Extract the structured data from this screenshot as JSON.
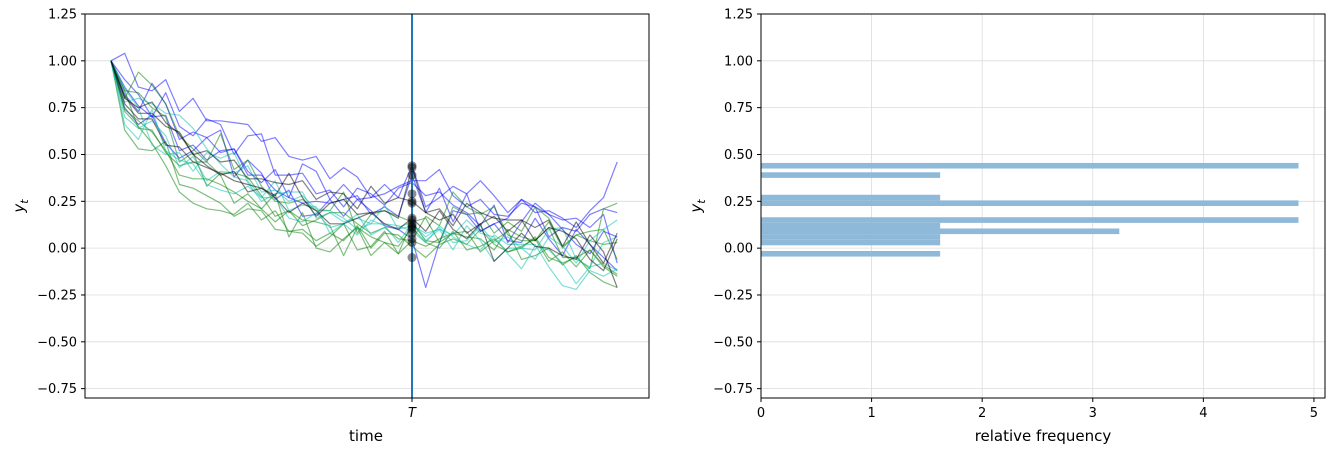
{
  "chart_data": [
    {
      "type": "line",
      "xlabel": "time",
      "ylabel": "y_t",
      "xtick_labels": [
        "T"
      ],
      "ylim": [
        -0.8,
        1.25
      ],
      "yticks": [
        -0.75,
        -0.5,
        -0.25,
        0.0,
        0.25,
        0.5,
        0.75,
        1.0,
        1.25
      ],
      "ytick_labels": [
        "−0.75",
        "−0.50",
        "−0.25",
        "0.00",
        "0.25",
        "0.50",
        "0.75",
        "1.00",
        "1.25"
      ],
      "n_steps": 38,
      "T_index": 22,
      "vline_color": "#1f77b4",
      "series_colors": [
        "#0000ff",
        "#008000",
        "#00c0b0",
        "#000000"
      ],
      "series": [
        {
          "color": "#0000ff",
          "values": [
            1.0,
            1.04,
            0.86,
            0.84,
            0.9,
            0.73,
            0.8,
            0.68,
            0.68,
            0.67,
            0.66,
            0.57,
            0.59,
            0.49,
            0.47,
            0.49,
            0.37,
            0.43,
            0.38,
            0.27,
            0.34,
            0.27,
            0.44,
            0.22,
            0.27,
            0.33,
            0.29,
            0.36,
            0.28,
            0.19,
            0.26,
            0.19,
            0.2,
            0.16,
            0.11,
            0.2,
            0.27,
            0.46
          ]
        },
        {
          "color": "#0000ff",
          "values": [
            1.0,
            0.86,
            0.76,
            0.7,
            0.83,
            0.65,
            0.6,
            0.69,
            0.66,
            0.5,
            0.6,
            0.61,
            0.39,
            0.39,
            0.4,
            0.29,
            0.31,
            0.22,
            0.32,
            0.29,
            0.23,
            0.32,
            0.35,
            0.28,
            0.3,
            0.23,
            0.19,
            0.12,
            0.23,
            0.03,
            0.14,
            0.24,
            0.18,
            0.1,
            0.02,
            -0.03,
            0.09,
            0.06
          ]
        },
        {
          "color": "#0000ff",
          "values": [
            1.0,
            0.82,
            0.73,
            0.88,
            0.77,
            0.58,
            0.62,
            0.59,
            0.63,
            0.38,
            0.47,
            0.4,
            0.26,
            0.31,
            0.17,
            0.18,
            0.26,
            0.17,
            0.26,
            0.2,
            0.12,
            0.1,
            0.05,
            -0.21,
            0.03,
            0.2,
            0.18,
            0.09,
            0.13,
            0.04,
            0.03,
            0.16,
            0.05,
            -0.04,
            0.1,
            0.02,
            -0.05,
            -0.12
          ]
        },
        {
          "color": "#0000ff",
          "values": [
            1.0,
            0.9,
            0.82,
            0.7,
            0.71,
            0.52,
            0.55,
            0.47,
            0.52,
            0.53,
            0.39,
            0.39,
            0.31,
            0.27,
            0.24,
            0.25,
            0.24,
            0.26,
            0.28,
            0.18,
            0.22,
            0.17,
            0.39,
            0.19,
            0.32,
            0.14,
            0.29,
            0.09,
            0.13,
            0.16,
            0.26,
            0.22,
            0.06,
            0.11,
            0.09,
            0.18,
            0.21,
            0.19
          ]
        },
        {
          "color": "#0000ff",
          "values": [
            1.0,
            0.75,
            0.66,
            0.71,
            0.56,
            0.48,
            0.52,
            0.59,
            0.51,
            0.53,
            0.41,
            0.35,
            0.42,
            0.27,
            0.45,
            0.41,
            0.26,
            0.34,
            0.26,
            0.27,
            0.29,
            0.33,
            0.36,
            0.36,
            0.42,
            0.28,
            0.22,
            0.26,
            0.18,
            0.17,
            0.24,
            0.22,
            0.18,
            0.15,
            0.16,
            0.11,
            0.18,
            -0.08
          ]
        },
        {
          "color": "#008000",
          "values": [
            1.0,
            0.8,
            0.94,
            0.87,
            0.77,
            0.6,
            0.53,
            0.46,
            0.61,
            0.42,
            0.47,
            0.33,
            0.25,
            0.24,
            0.26,
            0.2,
            0.2,
            0.3,
            0.08,
            0.18,
            0.2,
            0.17,
            0.14,
            0.16,
            0.03,
            0.22,
            0.18,
            0.19,
            0.08,
            0.14,
            0.09,
            0.22,
            0.16,
            0.01,
            0.07,
            0.09,
            0.1,
            -0.06
          ]
        },
        {
          "color": "#008000",
          "values": [
            1.0,
            0.84,
            0.64,
            0.63,
            0.51,
            0.44,
            0.46,
            0.46,
            0.39,
            0.24,
            0.29,
            0.21,
            0.14,
            0.2,
            0.12,
            0.15,
            0.19,
            0.19,
            0.13,
            0.08,
            0.11,
            0.05,
            0.04,
            0.17,
            0.12,
            0.3,
            0.22,
            0.18,
            0.22,
            0.07,
            0.04,
            0.04,
            0.11,
            -0.05,
            -0.05,
            -0.11,
            0.21,
            0.24
          ]
        },
        {
          "color": "#008000",
          "values": [
            1.0,
            0.84,
            0.83,
            0.75,
            0.7,
            0.46,
            0.51,
            0.33,
            0.4,
            0.4,
            0.38,
            0.28,
            0.17,
            0.2,
            0.15,
            0.14,
            0.12,
            -0.04,
            0.11,
            -0.04,
            0.03,
            -0.03,
            0.04,
            0.01,
            0.05,
            0.08,
            0.09,
            -0.02,
            0.04,
            0.09,
            -0.06,
            -0.04,
            0.0,
            -0.09,
            -0.04,
            -0.13,
            -0.18,
            -0.21
          ]
        },
        {
          "color": "#008000",
          "values": [
            1.0,
            0.74,
            0.68,
            0.62,
            0.52,
            0.39,
            0.37,
            0.37,
            0.34,
            0.3,
            0.25,
            0.21,
            0.29,
            0.06,
            0.19,
            0.0,
            -0.02,
            0.05,
            0.11,
            0.06,
            0.03,
            0.01,
            0.11,
            0.03,
            0.0,
            0.09,
            -0.01,
            0.01,
            0.05,
            -0.02,
            0.0,
            0.06,
            -0.05,
            -0.08,
            -0.05,
            -0.01,
            -0.1,
            -0.15
          ]
        },
        {
          "color": "#008000",
          "values": [
            1.0,
            0.63,
            0.53,
            0.52,
            0.57,
            0.34,
            0.32,
            0.28,
            0.24,
            0.17,
            0.21,
            0.2,
            0.1,
            0.09,
            0.1,
            0.04,
            0.08,
            0.04,
            0.12,
            0.0,
            0.08,
            0.07,
            0.01,
            -0.05,
            0.02,
            0.05,
            0.02,
            0.1,
            0.02,
            -0.02,
            0.01,
            0.05,
            -0.07,
            -0.02,
            -0.1,
            -0.01,
            -0.09,
            -0.14
          ]
        },
        {
          "color": "#008000",
          "values": [
            1.0,
            0.73,
            0.65,
            0.56,
            0.44,
            0.3,
            0.24,
            0.21,
            0.2,
            0.18,
            0.24,
            0.15,
            0.2,
            0.09,
            0.08,
            0.01,
            0.06,
            0.13,
            -0.01,
            0.01,
            0.09,
            -0.03,
            0.14,
            0.04,
            0.03,
            0.08,
            0.06,
            0.05,
            -0.01,
            0.1,
            0.06,
            0.04,
            0.14,
            0.0,
            0.07,
            0.04,
            0.02,
            0.03
          ]
        },
        {
          "color": "#00c0b0",
          "values": [
            1.0,
            0.66,
            0.58,
            0.74,
            0.52,
            0.47,
            0.45,
            0.34,
            0.31,
            0.29,
            0.33,
            0.27,
            0.27,
            0.16,
            0.14,
            0.19,
            0.11,
            0.13,
            0.07,
            0.15,
            0.12,
            0.03,
            0.13,
            0.06,
            0.11,
            0.03,
            0.04,
            0.12,
            0.03,
            0.06,
            0.0,
            -0.06,
            0.06,
            0.01,
            -0.08,
            0.04,
            0.1,
            0.15
          ]
        },
        {
          "color": "#00c0b0",
          "values": [
            1.0,
            0.85,
            0.75,
            0.55,
            0.5,
            0.51,
            0.41,
            0.51,
            0.48,
            0.51,
            0.35,
            0.25,
            0.29,
            0.3,
            0.3,
            0.16,
            0.19,
            0.14,
            0.16,
            0.13,
            0.23,
            0.1,
            0.12,
            0.08,
            0.1,
            -0.01,
            0.12,
            0.04,
            -0.07,
            0.0,
            0.0,
            -0.01,
            0.1,
            0.11,
            -0.06,
            -0.1,
            0.03,
            0.06
          ]
        },
        {
          "color": "#00c0b0",
          "values": [
            1.0,
            0.78,
            0.8,
            0.77,
            0.72,
            0.71,
            0.64,
            0.53,
            0.45,
            0.38,
            0.36,
            0.27,
            0.36,
            0.2,
            0.23,
            0.22,
            0.08,
            0.13,
            0.18,
            0.07,
            0.11,
            0.11,
            0.14,
            0.04,
            0.1,
            0.07,
            0.15,
            0.08,
            0.06,
            -0.03,
            -0.11,
            0.01,
            -0.01,
            -0.08,
            -0.19,
            -0.1,
            -0.08,
            -0.12
          ]
        },
        {
          "color": "#00c0b0",
          "values": [
            1.0,
            0.7,
            0.64,
            0.68,
            0.6,
            0.43,
            0.49,
            0.36,
            0.41,
            0.4,
            0.44,
            0.3,
            0.31,
            0.25,
            0.28,
            0.21,
            0.2,
            0.16,
            0.1,
            0.13,
            0.13,
            0.12,
            0.09,
            0.03,
            0.12,
            0.06,
            0.02,
            -0.01,
            0.07,
            0.02,
            0.02,
            0.02,
            -0.1,
            -0.2,
            -0.22,
            -0.12,
            -0.15,
            -0.11
          ]
        },
        {
          "color": "#000000",
          "values": [
            1.0,
            0.8,
            0.75,
            0.78,
            0.67,
            0.61,
            0.5,
            0.52,
            0.46,
            0.47,
            0.37,
            0.37,
            0.35,
            0.34,
            0.36,
            0.26,
            0.3,
            0.29,
            0.21,
            0.33,
            0.24,
            0.27,
            0.25,
            0.19,
            0.21,
            0.12,
            0.24,
            0.19,
            0.16,
            0.15,
            0.15,
            0.04,
            0.11,
            0.09,
            0.05,
            -0.06,
            -0.12,
            0.05
          ]
        },
        {
          "color": "#000000",
          "values": [
            1.0,
            0.77,
            0.69,
            0.69,
            0.55,
            0.54,
            0.46,
            0.43,
            0.4,
            0.36,
            0.34,
            0.32,
            0.27,
            0.19,
            0.24,
            0.2,
            0.13,
            0.13,
            0.16,
            0.19,
            0.13,
            0.1,
            0.16,
            0.09,
            0.2,
            0.1,
            0.05,
            0.13,
            -0.07,
            0.0,
            0.08,
            0.01,
            0.0,
            -0.04,
            -0.06,
            0.07,
            -0.02,
            -0.21
          ]
        },
        {
          "color": "#000000",
          "values": [
            1.0,
            0.81,
            0.72,
            0.72,
            0.65,
            0.62,
            0.5,
            0.44,
            0.39,
            0.41,
            0.3,
            0.32,
            0.28,
            0.4,
            0.27,
            0.17,
            0.24,
            0.26,
            0.18,
            0.19,
            0.2,
            0.16,
            0.43,
            0.19,
            0.15,
            0.18,
            0.08,
            0.13,
            0.17,
            0.09,
            0.15,
            0.11,
            0.15,
            0.01,
            0.14,
            0.02,
            -0.08,
            0.08
          ]
        }
      ],
      "T_scatter_values": [
        0.44,
        0.43,
        0.39,
        0.29,
        0.25,
        0.24,
        0.16,
        0.15,
        0.13,
        0.12,
        0.11,
        0.1,
        0.08,
        0.05,
        0.03,
        -0.05
      ]
    },
    {
      "type": "bar",
      "orientation": "horizontal",
      "xlabel": "relative frequency",
      "ylabel": "y_t",
      "xlim": [
        0,
        5.1
      ],
      "xticks": [
        0,
        1,
        2,
        3,
        4,
        5
      ],
      "xtick_labels": [
        "0",
        "1",
        "2",
        "3",
        "4",
        "5"
      ],
      "ylim": [
        -0.8,
        1.25
      ],
      "yticks": [
        -0.75,
        -0.5,
        -0.25,
        0.0,
        0.25,
        0.5,
        0.75,
        1.0,
        1.25
      ],
      "ytick_labels": [
        "−0.75",
        "−0.50",
        "−0.25",
        "0.00",
        "0.25",
        "0.50",
        "0.75",
        "1.00",
        "1.25"
      ],
      "grid": true,
      "bar_color": "#8fb9d9",
      "bars": [
        {
          "y0": -0.045,
          "y1": -0.015,
          "value": 1.62
        },
        {
          "y0": 0.015,
          "y1": 0.045,
          "value": 1.62
        },
        {
          "y0": 0.045,
          "y1": 0.075,
          "value": 1.62
        },
        {
          "y0": 0.075,
          "y1": 0.105,
          "value": 3.24
        },
        {
          "y0": 0.105,
          "y1": 0.135,
          "value": 1.62
        },
        {
          "y0": 0.135,
          "y1": 0.165,
          "value": 4.86
        },
        {
          "y0": 0.225,
          "y1": 0.255,
          "value": 4.86
        },
        {
          "y0": 0.255,
          "y1": 0.285,
          "value": 1.62
        },
        {
          "y0": 0.375,
          "y1": 0.405,
          "value": 1.62
        },
        {
          "y0": 0.425,
          "y1": 0.455,
          "value": 4.86
        }
      ]
    }
  ]
}
